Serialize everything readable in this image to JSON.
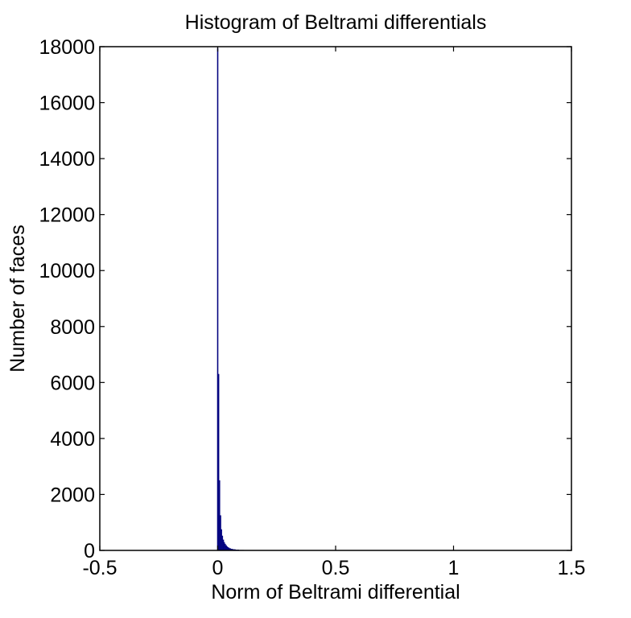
{
  "chart_data": {
    "type": "bar",
    "title": "Histogram of Beltrami differentials",
    "xlabel": "Norm of Beltrami differential",
    "ylabel": "Number of faces",
    "xlim": [
      -0.5,
      1.5
    ],
    "ylim": [
      0,
      18000
    ],
    "xticks": [
      -0.5,
      0,
      0.5,
      1,
      1.5
    ],
    "xtick_labels": [
      "-0.5",
      "0",
      "0.5",
      "1",
      "1.5"
    ],
    "yticks": [
      0,
      2000,
      4000,
      6000,
      8000,
      10000,
      12000,
      14000,
      16000,
      18000
    ],
    "ytick_labels": [
      "0",
      "2000",
      "4000",
      "6000",
      "8000",
      "10000",
      "12000",
      "14000",
      "16000",
      "18000"
    ],
    "grid": false,
    "bar_color": "#00007f",
    "bins": [
      {
        "x0": -0.002,
        "x1": 0.002,
        "value": 17950
      },
      {
        "x0": 0.002,
        "x1": 0.006,
        "value": 6300
      },
      {
        "x0": 0.006,
        "x1": 0.01,
        "value": 2500
      },
      {
        "x0": 0.01,
        "x1": 0.014,
        "value": 1250
      },
      {
        "x0": 0.014,
        "x1": 0.018,
        "value": 750
      },
      {
        "x0": 0.018,
        "x1": 0.022,
        "value": 520
      },
      {
        "x0": 0.022,
        "x1": 0.026,
        "value": 380
      },
      {
        "x0": 0.026,
        "x1": 0.03,
        "value": 290
      },
      {
        "x0": 0.03,
        "x1": 0.034,
        "value": 230
      },
      {
        "x0": 0.034,
        "x1": 0.038,
        "value": 180
      },
      {
        "x0": 0.038,
        "x1": 0.042,
        "value": 140
      },
      {
        "x0": 0.042,
        "x1": 0.046,
        "value": 110
      },
      {
        "x0": 0.046,
        "x1": 0.05,
        "value": 90
      },
      {
        "x0": 0.05,
        "x1": 0.056,
        "value": 70
      },
      {
        "x0": 0.056,
        "x1": 0.064,
        "value": 50
      },
      {
        "x0": 0.064,
        "x1": 0.075,
        "value": 35
      },
      {
        "x0": 0.075,
        "x1": 0.09,
        "value": 22
      },
      {
        "x0": 0.09,
        "x1": 0.11,
        "value": 12
      },
      {
        "x0": 0.11,
        "x1": 0.13,
        "value": 5
      }
    ]
  }
}
